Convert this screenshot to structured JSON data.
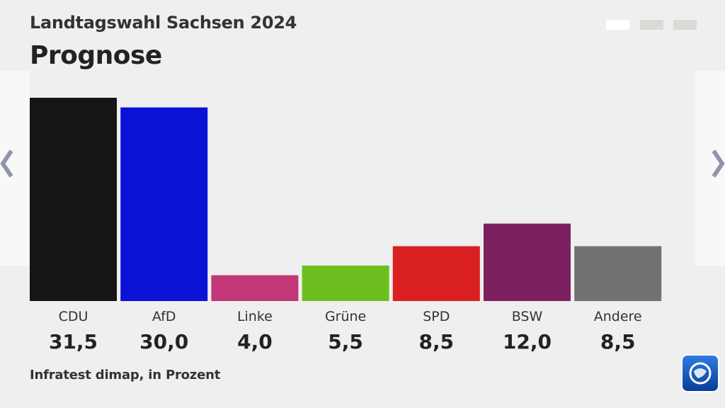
{
  "header": {
    "supertitle": "Landtagswahl Sachsen 2024",
    "title": "Prognose"
  },
  "pagination": {
    "count": 3,
    "active": 0
  },
  "nav": {
    "prev_icon": "chevron-left-icon",
    "next_icon": "chevron-right-icon"
  },
  "chart_data": {
    "type": "bar",
    "title": "Prognose",
    "categories": [
      "CDU",
      "AfD",
      "Linke",
      "Grüne",
      "SPD",
      "BSW",
      "Andere"
    ],
    "values": [
      31.5,
      30.0,
      4.0,
      5.5,
      8.5,
      12.0,
      8.5
    ],
    "value_labels": [
      "31,5",
      "30,0",
      "4,0",
      "5,5",
      "8,5",
      "12,0",
      "8,5"
    ],
    "colors": [
      "#151515",
      "#0a12d6",
      "#c23778",
      "#6fbe1f",
      "#da2020",
      "#7d2060",
      "#727272"
    ],
    "ylim": [
      0,
      31.5
    ],
    "grid": false
  },
  "footer": {
    "source": "Infratest dimap, in Prozent"
  },
  "logo": {
    "icon": "tagesschau-logo-icon"
  }
}
